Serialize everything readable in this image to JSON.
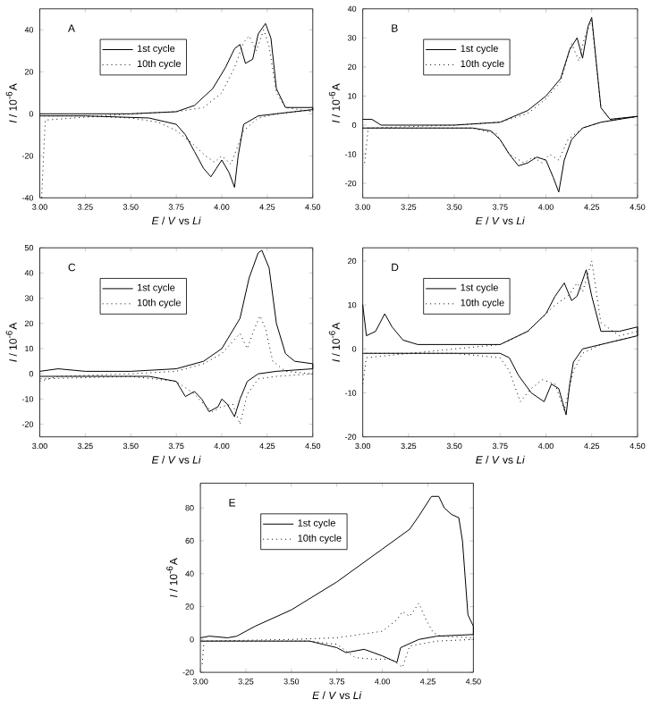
{
  "chart_data": [
    {
      "type": "line",
      "title": "A",
      "xlabel": "*E* / *V* vs *Li*",
      "ylabel": "*I* / 10$^{-6}$A",
      "xlim": [
        3.0,
        4.5
      ],
      "ylim": [
        -40,
        50
      ],
      "xticks": [
        {
          "value": 3.0,
          "label": "3.00"
        },
        {
          "value": 3.25,
          "label": "3.25"
        },
        {
          "value": 3.5,
          "label": "3.50"
        },
        {
          "value": 3.75,
          "label": "3.75"
        },
        {
          "value": 4.0,
          "label": "4.00"
        },
        {
          "value": 4.25,
          "label": "4.25"
        },
        {
          "value": 4.5,
          "label": "4.50"
        }
      ],
      "yticks": [
        -40,
        -20,
        0,
        20,
        40
      ],
      "legend": "top left",
      "series": [
        {
          "name": "1st cycle",
          "color": "#000000",
          "line_style": "solid",
          "x": [
            3.0,
            3.5,
            3.75,
            3.85,
            3.95,
            4.02,
            4.07,
            4.1,
            4.13,
            4.17,
            4.2,
            4.24,
            4.27,
            4.3,
            4.35,
            4.5,
            4.5,
            4.3,
            4.2,
            4.12,
            4.09,
            4.07,
            4.04,
            4.0,
            3.97,
            3.94,
            3.9,
            3.85,
            3.8,
            3.75,
            3.6,
            3.25,
            3.0
          ],
          "values": [
            0,
            0,
            1,
            4,
            12,
            22,
            31,
            33,
            24,
            26,
            38,
            43,
            36,
            12,
            3,
            3,
            2,
            0,
            -1,
            -5,
            -20,
            -35,
            -28,
            -22,
            -26,
            -30,
            -26,
            -18,
            -10,
            -5,
            -2,
            -1,
            -1
          ]
        },
        {
          "name": "10th cycle",
          "color": "#000000",
          "line_style": "dotted",
          "x": [
            3.01,
            3.03,
            3.5,
            3.75,
            3.9,
            4.0,
            4.07,
            4.12,
            4.15,
            4.19,
            4.23,
            4.26,
            4.3,
            4.35,
            4.5,
            4.5,
            4.3,
            4.2,
            4.12,
            4.05,
            4.0,
            3.96,
            3.91,
            3.85,
            3.75,
            3.65,
            3.5,
            3.25,
            3.0
          ],
          "values": [
            -40,
            -3,
            0,
            1,
            3,
            10,
            22,
            34,
            37,
            30,
            40,
            32,
            10,
            3,
            1,
            2,
            0,
            -2,
            -8,
            -24,
            -20,
            -23,
            -20,
            -15,
            -8,
            -4,
            -2,
            -1,
            -1
          ]
        }
      ]
    },
    {
      "type": "line",
      "title": "B",
      "xlabel": "*E* / *V* vs *Li*",
      "ylabel": "*I* / 10$^{-6}$A",
      "xlim": [
        3.0,
        4.5
      ],
      "ylim": [
        -25,
        40
      ],
      "xticks": [
        {
          "value": 3.0,
          "label": "3.00"
        },
        {
          "value": 3.25,
          "label": "3.25"
        },
        {
          "value": 3.5,
          "label": "3.50"
        },
        {
          "value": 3.75,
          "label": "3.75"
        },
        {
          "value": 4.0,
          "label": "4.00"
        },
        {
          "value": 4.25,
          "label": "4.25"
        },
        {
          "value": 4.5,
          "label": "4.50"
        }
      ],
      "yticks": [
        -20,
        -10,
        0,
        10,
        20,
        30,
        40
      ],
      "legend": "top left",
      "series": [
        {
          "name": "1st cycle",
          "color": "#000000",
          "line_style": "solid",
          "x": [
            3.0,
            3.05,
            3.1,
            3.5,
            3.75,
            3.9,
            4.0,
            4.08,
            4.13,
            4.17,
            4.2,
            4.23,
            4.25,
            4.3,
            4.35,
            4.5,
            4.5,
            4.3,
            4.2,
            4.14,
            4.1,
            4.07,
            4.04,
            4.0,
            3.95,
            3.9,
            3.85,
            3.8,
            3.75,
            3.7,
            3.6,
            3.25,
            3.0
          ],
          "values": [
            2,
            2,
            0,
            0,
            1,
            5,
            10,
            16,
            26,
            30,
            23,
            34,
            37,
            6,
            2,
            3,
            3,
            1,
            -1,
            -5,
            -12,
            -23,
            -18,
            -12,
            -11,
            -13,
            -14,
            -10,
            -5,
            -2,
            -1,
            -1,
            -1
          ]
        },
        {
          "name": "10th cycle",
          "color": "#000000",
          "line_style": "dotted",
          "x": [
            3.01,
            3.03,
            3.5,
            3.75,
            3.9,
            4.0,
            4.08,
            4.14,
            4.18,
            4.21,
            4.25,
            4.3,
            4.35,
            4.5,
            4.5,
            4.3,
            4.2,
            4.12,
            4.07,
            4.02,
            3.98,
            3.93,
            3.88,
            3.8,
            3.73,
            3.6,
            3.25,
            3.0
          ],
          "values": [
            -13,
            -1,
            0,
            1,
            4,
            9,
            15,
            28,
            22,
            30,
            36,
            6,
            2,
            3,
            3,
            1,
            -1,
            -5,
            -12,
            -10,
            -13,
            -11,
            -13,
            -10,
            -3,
            -1,
            -1,
            -1
          ]
        }
      ]
    },
    {
      "type": "line",
      "title": "C",
      "xlabel": "*E* / *V* vs *Li*",
      "ylabel": "*I* / 10$^{-6}$A",
      "xlim": [
        3.0,
        4.5
      ],
      "ylim": [
        -25,
        50
      ],
      "xticks": [
        {
          "value": 3.0,
          "label": "3.00"
        },
        {
          "value": 3.25,
          "label": "3.25"
        },
        {
          "value": 3.5,
          "label": "3.50"
        },
        {
          "value": 3.75,
          "label": "3.75"
        },
        {
          "value": 4.0,
          "label": "4.00"
        },
        {
          "value": 4.25,
          "label": "4.25"
        },
        {
          "value": 4.5,
          "label": "4.50"
        }
      ],
      "yticks": [
        -20,
        -10,
        0,
        10,
        20,
        30,
        40,
        50
      ],
      "legend": "top left",
      "series": [
        {
          "name": "1st cycle",
          "color": "#000000",
          "line_style": "solid",
          "x": [
            3.0,
            3.1,
            3.25,
            3.5,
            3.75,
            3.9,
            4.0,
            4.1,
            4.15,
            4.2,
            4.22,
            4.26,
            4.3,
            4.35,
            4.4,
            4.5,
            4.5,
            4.3,
            4.2,
            4.14,
            4.1,
            4.07,
            4.03,
            4.0,
            3.98,
            3.93,
            3.89,
            3.85,
            3.8,
            3.75,
            3.6,
            3.0
          ],
          "values": [
            1,
            2,
            1,
            1,
            2,
            5,
            10,
            22,
            38,
            48,
            49,
            42,
            20,
            8,
            5,
            4,
            2,
            1,
            0,
            -3,
            -10,
            -17,
            -12,
            -10,
            -13,
            -15,
            -10,
            -7,
            -9,
            -3,
            -1,
            -1
          ]
        },
        {
          "name": "10th cycle",
          "color": "#000000",
          "line_style": "dotted",
          "x": [
            3.0,
            3.1,
            3.5,
            3.75,
            3.9,
            4.0,
            4.1,
            4.14,
            4.18,
            4.21,
            4.24,
            4.28,
            4.35,
            4.5,
            4.5,
            4.3,
            4.2,
            4.14,
            4.1,
            4.06,
            4.0,
            3.95,
            3.9,
            3.85,
            3.75,
            3.5,
            3.0
          ],
          "values": [
            -3,
            -1,
            0,
            1,
            4,
            8,
            16,
            10,
            18,
            23,
            18,
            5,
            1,
            0,
            0,
            -1,
            -2,
            -8,
            -20,
            -12,
            -13,
            -15,
            -12,
            -8,
            -3,
            -1,
            -2
          ]
        }
      ]
    },
    {
      "type": "line",
      "title": "D",
      "xlabel": "*E* / *V* vs *Li*",
      "ylabel": "*I* / 10$^{-6}$A",
      "xlim": [
        3.0,
        4.5
      ],
      "ylim": [
        -20,
        23
      ],
      "xticks": [
        {
          "value": 3.0,
          "label": "3.00"
        },
        {
          "value": 3.25,
          "label": "3.25"
        },
        {
          "value": 3.5,
          "label": "3.50"
        },
        {
          "value": 3.75,
          "label": "3.75"
        },
        {
          "value": 4.0,
          "label": "4.00"
        },
        {
          "value": 4.25,
          "label": "4.25"
        },
        {
          "value": 4.5,
          "label": "4.50"
        }
      ],
      "yticks": [
        -20,
        -10,
        0,
        10,
        20
      ],
      "legend": "top left",
      "series": [
        {
          "name": "1st cycle",
          "color": "#000000",
          "line_style": "solid",
          "x": [
            3.0,
            3.02,
            3.07,
            3.12,
            3.16,
            3.22,
            3.3,
            3.5,
            3.75,
            3.9,
            4.0,
            4.05,
            4.1,
            4.14,
            4.17,
            4.22,
            4.25,
            4.3,
            4.4,
            4.5,
            4.5,
            4.3,
            4.2,
            4.15,
            4.13,
            4.11,
            4.07,
            4.03,
            3.99,
            3.92,
            3.85,
            3.8,
            3.75,
            3.5,
            3.0
          ],
          "values": [
            10,
            3,
            4,
            8,
            5,
            2,
            1,
            1,
            1,
            4,
            8,
            12,
            15,
            11,
            12,
            18,
            12,
            4,
            4,
            5,
            3,
            1,
            0,
            -3,
            -8,
            -15,
            -9,
            -8,
            -12,
            -10,
            -6,
            -2,
            -1,
            -1,
            -1
          ]
        },
        {
          "name": "10th cycle",
          "color": "#000000",
          "line_style": "dotted",
          "x": [
            3.0,
            3.02,
            3.5,
            3.75,
            3.9,
            4.05,
            4.12,
            4.17,
            4.2,
            4.25,
            4.3,
            4.4,
            4.5,
            4.5,
            4.3,
            4.2,
            4.15,
            4.1,
            4.05,
            3.98,
            3.92,
            3.86,
            3.8,
            3.75,
            3.5,
            3.0
          ],
          "values": [
            -8,
            -2,
            0,
            1,
            4,
            10,
            12,
            15,
            13,
            20,
            6,
            3,
            4,
            3,
            1,
            -1,
            -5,
            -14,
            -8,
            -7,
            -9,
            -12,
            -5,
            -2,
            -1,
            -1
          ]
        }
      ]
    },
    {
      "type": "line",
      "title": "E",
      "xlabel": "*E* / *V* vs *Li*",
      "ylabel": "*I* / 10$^{-6}$A",
      "xlim": [
        3.0,
        4.5
      ],
      "ylim": [
        -20,
        95
      ],
      "xticks": [
        {
          "value": 3.0,
          "label": "3.00"
        },
        {
          "value": 3.25,
          "label": "3.25"
        },
        {
          "value": 3.5,
          "label": "3.50"
        },
        {
          "value": 3.75,
          "label": "3.75"
        },
        {
          "value": 4.0,
          "label": "4.00"
        },
        {
          "value": 4.25,
          "label": "4.25"
        },
        {
          "value": 4.5,
          "label": "4.50"
        }
      ],
      "yticks": [
        -20,
        0,
        20,
        40,
        60,
        80
      ],
      "legend": "top left",
      "series": [
        {
          "name": "1st cycle",
          "color": "#000000",
          "line_style": "solid",
          "x": [
            3.0,
            3.05,
            3.15,
            3.2,
            3.3,
            3.5,
            3.75,
            4.0,
            4.15,
            4.2,
            4.27,
            4.31,
            4.34,
            4.38,
            4.42,
            4.44,
            4.47,
            4.5,
            4.5,
            4.3,
            4.2,
            4.1,
            4.08,
            4.0,
            3.9,
            3.8,
            3.75,
            3.6,
            3.0
          ],
          "values": [
            1,
            2,
            1,
            2,
            8,
            18,
            35,
            55,
            67,
            75,
            87,
            87,
            80,
            76,
            74,
            60,
            15,
            8,
            3,
            2,
            0,
            -5,
            -14,
            -10,
            -6,
            -8,
            -5,
            -1,
            -1
          ]
        },
        {
          "name": "10th cycle",
          "color": "#000000",
          "line_style": "dotted",
          "x": [
            3.01,
            3.02,
            3.5,
            3.75,
            4.0,
            4.08,
            4.11,
            4.15,
            4.2,
            4.24,
            4.28,
            4.32,
            4.5,
            4.5,
            4.3,
            4.15,
            4.11,
            4.05,
            3.95,
            3.85,
            3.75,
            3.6,
            3.0
          ],
          "values": [
            -15,
            -1,
            0,
            1,
            5,
            12,
            17,
            14,
            22,
            12,
            4,
            2,
            1,
            0,
            -1,
            -4,
            -17,
            -12,
            -12,
            -11,
            -3,
            -1,
            -1
          ]
        }
      ]
    }
  ]
}
